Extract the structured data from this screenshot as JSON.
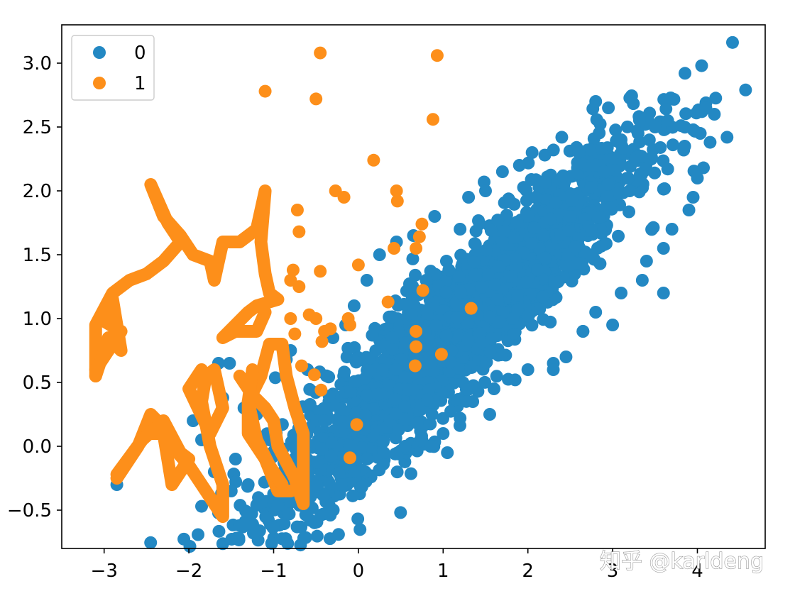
{
  "watermark": "知乎 @karldeng",
  "colors": {
    "series0": "#2388c3",
    "series1": "#fd8f1a",
    "axis": "#000000"
  },
  "chart_data": {
    "type": "scatter",
    "title": "",
    "xlabel": "",
    "ylabel": "",
    "xlim": [
      -3.5,
      4.8
    ],
    "ylim": [
      -0.8,
      3.3
    ],
    "xticks": [
      -3,
      -2,
      -1,
      0,
      1,
      2,
      3,
      4
    ],
    "yticks": [
      -0.5,
      0.0,
      0.5,
      1.0,
      1.5,
      2.0,
      2.5,
      3.0
    ],
    "xtick_labels": [
      "−3",
      "−2",
      "−1",
      "0",
      "1",
      "2",
      "3",
      "4"
    ],
    "ytick_labels": [
      "−0.5",
      "0.0",
      "0.5",
      "1.0",
      "1.5",
      "2.0",
      "2.5",
      "3.0"
    ],
    "grid": false,
    "legend": {
      "position": "top-left",
      "entries": [
        "0",
        "1"
      ]
    },
    "series": [
      {
        "name": "0",
        "color": "#2388c3",
        "cluster": {
          "x_center": 1.1,
          "y_center": 0.9,
          "note": "dense elongated blob"
        },
        "points": [
          [
            -2.85,
            -0.3
          ],
          [
            -1.4,
            -0.62
          ],
          [
            -0.95,
            -0.46
          ],
          [
            -1.2,
            -0.46
          ],
          [
            -1.65,
            -0.52
          ],
          [
            -1.85,
            -0.47
          ],
          [
            -2.05,
            -0.1
          ],
          [
            -1.95,
            0.2
          ],
          [
            -1.85,
            0.05
          ],
          [
            -1.6,
            0.38
          ],
          [
            -1.65,
            0.65
          ],
          [
            -1.52,
            0.65
          ],
          [
            -1.35,
            0.3
          ],
          [
            -1.2,
            0.25
          ],
          [
            -1.3,
            -0.3
          ],
          [
            -0.85,
            0.68
          ],
          [
            -0.8,
            0.75
          ],
          [
            -0.6,
            0.6
          ],
          [
            -0.3,
            0.85
          ],
          [
            -0.15,
            0.95
          ],
          [
            -0.05,
            1.1
          ],
          [
            0.1,
            1.3
          ],
          [
            0.25,
            1.5
          ],
          [
            0.45,
            1.6
          ],
          [
            0.65,
            1.65
          ],
          [
            0.9,
            1.8
          ],
          [
            1.3,
            1.95
          ],
          [
            1.5,
            2.0
          ],
          [
            1.7,
            2.15
          ],
          [
            1.9,
            2.2
          ],
          [
            2.05,
            2.3
          ],
          [
            2.2,
            2.28
          ],
          [
            2.4,
            2.42
          ],
          [
            2.6,
            2.3
          ],
          [
            2.8,
            2.7
          ],
          [
            2.95,
            2.65
          ],
          [
            3.1,
            2.4
          ],
          [
            3.3,
            2.45
          ],
          [
            3.5,
            2.5
          ],
          [
            3.65,
            2.55
          ],
          [
            3.85,
            2.35
          ],
          [
            4.05,
            2.98
          ],
          [
            4.1,
            2.65
          ],
          [
            4.2,
            2.6
          ],
          [
            4.35,
            2.42
          ],
          [
            4.15,
            2.38
          ],
          [
            4.0,
            2.1
          ],
          [
            3.95,
            1.95
          ],
          [
            3.9,
            1.85
          ],
          [
            3.7,
            1.7
          ],
          [
            3.6,
            1.55
          ],
          [
            3.4,
            1.45
          ],
          [
            3.35,
            1.3
          ],
          [
            3.1,
            1.2
          ],
          [
            2.8,
            1.05
          ],
          [
            2.65,
            0.9
          ],
          [
            2.45,
            0.7
          ],
          [
            2.3,
            0.65
          ],
          [
            2.0,
            0.6
          ],
          [
            1.85,
            0.52
          ],
          [
            1.6,
            0.45
          ],
          [
            1.35,
            0.35
          ],
          [
            1.2,
            0.22
          ],
          [
            1.0,
            0.1
          ],
          [
            0.75,
            0.05
          ],
          [
            0.55,
            0.0
          ],
          [
            0.3,
            -0.05
          ],
          [
            0.1,
            -0.1
          ],
          [
            -0.05,
            -0.2
          ],
          [
            -0.2,
            -0.3
          ],
          [
            -0.6,
            -0.2
          ],
          [
            0.85,
            0.0
          ],
          [
            1.05,
            -0.05
          ],
          [
            1.55,
            0.25
          ],
          [
            2.3,
            0.6
          ],
          [
            2.65,
            0.9
          ],
          [
            3.6,
            1.2
          ],
          [
            3.0,
            0.95
          ],
          [
            0.4,
            0.85
          ],
          [
            0.8,
            1.3
          ],
          [
            1.7,
            1.6
          ],
          [
            2.5,
            1.8
          ],
          [
            3.2,
            2.0
          ],
          [
            1.2,
            1.7
          ],
          [
            0.1,
            0.4
          ],
          [
            -0.4,
            0.2
          ],
          [
            -0.7,
            0.1
          ],
          [
            -1.05,
            0.05
          ],
          [
            -1.45,
            -0.1
          ],
          [
            -1.7,
            -0.2
          ],
          [
            -1.5,
            -0.35
          ],
          [
            -1.0,
            -0.2
          ]
        ]
      },
      {
        "name": "1",
        "color": "#fd8f1a",
        "points": [
          [
            -0.45,
            3.08
          ],
          [
            0.93,
            3.06
          ],
          [
            -1.1,
            2.78
          ],
          [
            -0.5,
            2.72
          ],
          [
            0.88,
            2.56
          ],
          [
            0.18,
            2.24
          ],
          [
            -0.27,
            2.0
          ],
          [
            -0.17,
            1.95
          ],
          [
            0.45,
            2.0
          ],
          [
            0.46,
            1.92
          ],
          [
            -0.72,
            1.85
          ],
          [
            -0.7,
            1.68
          ],
          [
            0.75,
            1.74
          ],
          [
            0.72,
            1.64
          ],
          [
            0.68,
            1.55
          ],
          [
            0.42,
            1.55
          ],
          [
            0.0,
            1.42
          ],
          [
            -0.45,
            1.37
          ],
          [
            -0.77,
            1.38
          ],
          [
            -0.8,
            1.3
          ],
          [
            -0.7,
            1.25
          ],
          [
            0.76,
            1.22
          ],
          [
            0.35,
            1.13
          ],
          [
            1.33,
            1.08
          ],
          [
            -0.8,
            1.0
          ],
          [
            -0.58,
            1.03
          ],
          [
            -0.5,
            1.0
          ],
          [
            -0.12,
            1.0
          ],
          [
            -0.1,
            0.95
          ],
          [
            -0.33,
            0.92
          ],
          [
            -0.4,
            0.9
          ],
          [
            -0.75,
            0.88
          ],
          [
            -0.43,
            0.82
          ],
          [
            0.68,
            0.9
          ],
          [
            0.68,
            0.78
          ],
          [
            0.98,
            0.72
          ],
          [
            0.67,
            0.63
          ],
          [
            -0.67,
            0.63
          ],
          [
            -0.52,
            0.56
          ],
          [
            -0.44,
            0.44
          ],
          [
            -0.02,
            0.17
          ],
          [
            -0.1,
            -0.09
          ]
        ],
        "polylines": [
          [
            [
              -3.1,
              0.55
            ],
            [
              -3.1,
              0.95
            ],
            [
              -2.9,
              1.2
            ],
            [
              -2.7,
              1.3
            ],
            [
              -2.5,
              1.35
            ],
            [
              -2.3,
              1.45
            ],
            [
              -2.1,
              1.6
            ],
            [
              -2.25,
              1.75
            ],
            [
              -2.45,
              2.05
            ],
            [
              -2.3,
              1.8
            ],
            [
              -2.1,
              1.65
            ],
            [
              -1.95,
              1.5
            ],
            [
              -1.75,
              1.45
            ],
            [
              -1.7,
              1.3
            ],
            [
              -1.6,
              1.6
            ],
            [
              -1.4,
              1.6
            ],
            [
              -1.2,
              1.7
            ],
            [
              -1.1,
              2.0
            ],
            [
              -1.15,
              1.6
            ],
            [
              -1.1,
              1.35
            ],
            [
              -1.05,
              1.2
            ],
            [
              -0.95,
              1.15
            ],
            [
              -1.2,
              1.1
            ],
            [
              -1.3,
              1.05
            ],
            [
              -1.6,
              0.85
            ],
            [
              -1.45,
              0.9
            ],
            [
              -1.2,
              0.9
            ],
            [
              -1.1,
              1.05
            ]
          ],
          [
            [
              -3.1,
              0.55
            ],
            [
              -2.95,
              0.85
            ],
            [
              -2.8,
              0.75
            ],
            [
              -2.9,
              1.15
            ],
            [
              -3.05,
              1.0
            ],
            [
              -2.8,
              0.9
            ],
            [
              -3.1,
              0.6
            ]
          ],
          [
            [
              -2.85,
              -0.25
            ],
            [
              -2.6,
              0.0
            ],
            [
              -2.45,
              0.25
            ],
            [
              -2.3,
              0.15
            ],
            [
              -2.2,
              0.0
            ],
            [
              -2.0,
              -0.15
            ],
            [
              -1.85,
              -0.3
            ],
            [
              -1.6,
              -0.55
            ],
            [
              -1.6,
              -0.3
            ],
            [
              -1.75,
              0.0
            ],
            [
              -1.85,
              0.35
            ],
            [
              -1.8,
              0.55
            ],
            [
              -1.7,
              0.6
            ],
            [
              -1.6,
              0.3
            ],
            [
              -1.75,
              0.1
            ],
            [
              -2.0,
              0.45
            ],
            [
              -1.85,
              0.6
            ]
          ],
          [
            [
              -2.85,
              -0.22
            ],
            [
              -2.55,
              0.05
            ],
            [
              -2.3,
              0.2
            ],
            [
              -2.1,
              -0.05
            ],
            [
              -2.0,
              -0.1
            ],
            [
              -2.2,
              -0.3
            ],
            [
              -2.3,
              0.1
            ],
            [
              -2.45,
              0.1
            ]
          ],
          [
            [
              -1.4,
              0.55
            ],
            [
              -1.25,
              0.4
            ],
            [
              -1.1,
              0.3
            ],
            [
              -1.0,
              0.2
            ],
            [
              -0.95,
              0.0
            ],
            [
              -0.75,
              -0.25
            ],
            [
              -0.65,
              -0.45
            ],
            [
              -0.65,
              0.1
            ],
            [
              -0.75,
              0.3
            ],
            [
              -0.85,
              0.55
            ],
            [
              -0.9,
              0.8
            ],
            [
              -1.05,
              0.8
            ],
            [
              -1.15,
              0.55
            ],
            [
              -1.3,
              0.35
            ],
            [
              -1.3,
              0.1
            ],
            [
              -1.1,
              -0.1
            ],
            [
              -0.95,
              -0.35
            ],
            [
              -0.8,
              -0.35
            ]
          ],
          [
            [
              -1.25,
              0.6
            ],
            [
              -1.3,
              0.35
            ],
            [
              -1.2,
              0.05
            ],
            [
              -1.05,
              -0.15
            ],
            [
              -0.9,
              -0.3
            ]
          ]
        ]
      }
    ]
  }
}
